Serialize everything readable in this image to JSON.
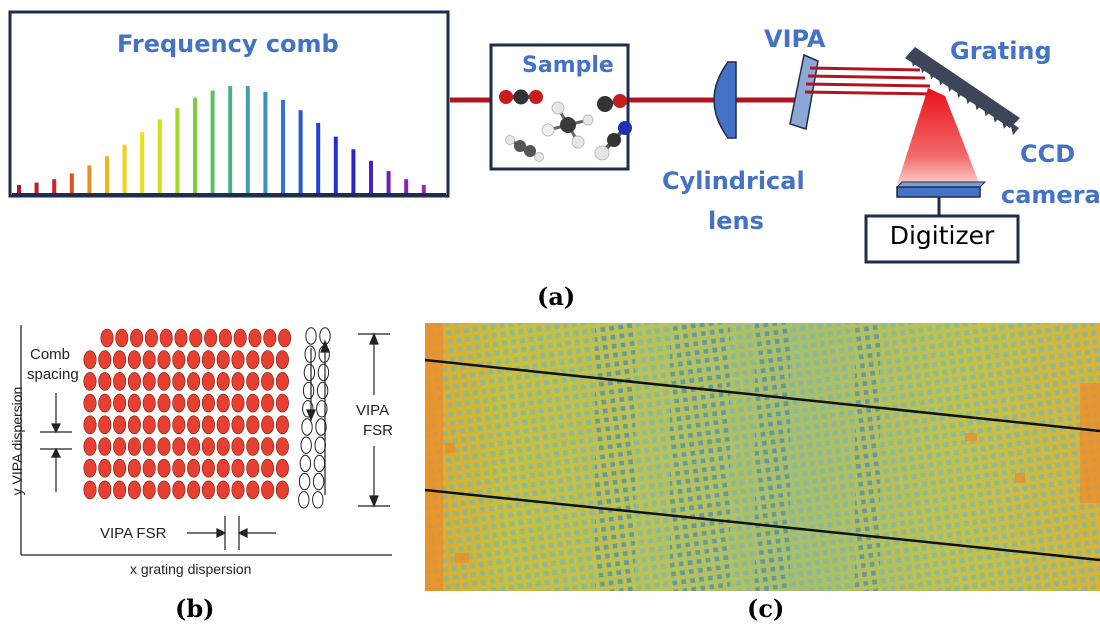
{
  "panel_a": {
    "comb_title": "Frequency comb",
    "sample_label": "Sample",
    "lens_label_line1": "Cylindrical",
    "lens_label_line2": "lens",
    "vipa_label": "VIPA",
    "grating_label": "Grating",
    "ccd_label_line1": "CCD",
    "ccd_label_line2": "camera",
    "digitizer_label": "Digitizer",
    "caption": "(a)",
    "comb_line_colors": [
      "#b2182b",
      "#c0182a",
      "#cc2222",
      "#d9541c",
      "#e8901f",
      "#f2b21c",
      "#f5cf1d",
      "#e8e21c",
      "#cbe21f",
      "#a8d62a",
      "#7fcb45",
      "#5fbf63",
      "#4bb088",
      "#3fa3a6",
      "#3a8fc4",
      "#2f74d6",
      "#2658dc",
      "#2240dc",
      "#2030d2",
      "#2a24c8",
      "#4a22c0",
      "#6a20b8",
      "#8a22b0",
      "#9c2ab0"
    ],
    "comb_line_heights": [
      0.07,
      0.09,
      0.12,
      0.17,
      0.24,
      0.32,
      0.42,
      0.53,
      0.64,
      0.74,
      0.83,
      0.89,
      0.93,
      0.93,
      0.88,
      0.81,
      0.72,
      0.61,
      0.49,
      0.38,
      0.28,
      0.19,
      0.12,
      0.07
    ],
    "beam_color": "#b01622",
    "accent_color": "#4472c4"
  },
  "panel_b": {
    "ylabel": "y VIPA dispersion",
    "xlabel": "x grating dispersion",
    "comb_spacing_line1": "Comb",
    "comb_spacing_line2": "spacing",
    "vipa_fsr_right_line1": "VIPA",
    "vipa_fsr_right_line2": "FSR",
    "vipa_fsr_bottom": "VIPA FSR",
    "caption": "(b)",
    "spot_color": "#e84030"
  },
  "panel_c": {
    "caption": "(c)"
  }
}
